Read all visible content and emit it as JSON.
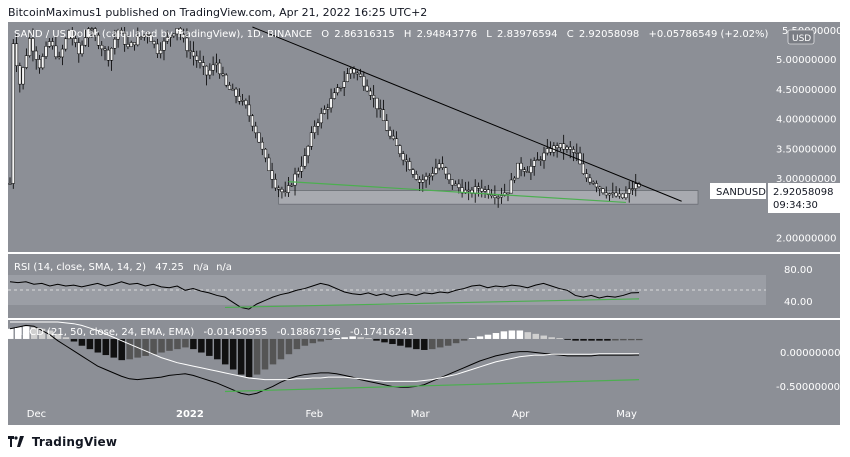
{
  "header": {
    "text": "BitcoinMaximus1 published on TradingView.com, Apr 21, 2022 16:25 UTC+2"
  },
  "legend": {
    "symbol": "SAND / US Dollar (calculated by TradingView), 1D, BINANCE",
    "open_label": "O",
    "open": "2.86316315",
    "high_label": "H",
    "high": "2.94843776",
    "low_label": "L",
    "low": "2.83976594",
    "close_label": "C",
    "close": "2.92058098",
    "change": "+0.05786549 (+2.02%)"
  },
  "currency_badge": "USD",
  "price_tag": {
    "symbol": "SANDUSD",
    "price": "2.92058098",
    "countdown": "09:34:30"
  },
  "price_axis": {
    "top_partial": "5.50000000",
    "labels": [
      "5.00000000",
      "4.50000000",
      "4.00000000",
      "3.50000000",
      "3.00000000",
      "2.50000000",
      "2.00000000"
    ]
  },
  "rsi": {
    "legend": "RSI (14, close, SMA, 14, 2)",
    "value": "47.25",
    "na1": "n/a",
    "na2": "n/a",
    "axis_labels": [
      "80.00",
      "40.00"
    ]
  },
  "macd": {
    "legend": "MACD (21, 50, close, 24, EMA, EMA)",
    "v1": "-0.01450955",
    "v2": "-0.18867196",
    "v3": "-0.17416241",
    "axis_labels": [
      "0.00000000",
      "-0.50000000"
    ]
  },
  "time_axis": {
    "labels": [
      "Dec",
      "2022",
      "Feb",
      "Mar",
      "Apr",
      "May"
    ]
  },
  "footer": {
    "brand": "TradingView"
  },
  "colors": {
    "pane_background": "#8c8f96",
    "candle": "#f4f4f4",
    "wick": "#000000",
    "support_line": "#4caf50",
    "box_fill": "#a8aab0"
  },
  "chart_data": [
    {
      "type": "candlestick",
      "title": "SAND / US Dollar (calculated by TradingView), 1D, BINANCE",
      "x_ticks": [
        "Dec",
        "2022",
        "Feb",
        "Mar",
        "Apr",
        "May"
      ],
      "ylim": [
        1.8,
        5.55
      ],
      "y_ticks": [
        2.0,
        2.5,
        3.0,
        3.5,
        4.0,
        4.5,
        5.0,
        5.5
      ],
      "last": {
        "open": 2.86316315,
        "high": 2.94843776,
        "low": 2.83976594,
        "close": 2.92058098
      },
      "price_path": [
        [
          1,
          5.3
        ],
        [
          3,
          4.6
        ],
        [
          6,
          5.35
        ],
        [
          9,
          4.9
        ],
        [
          12,
          5.3
        ],
        [
          15,
          5.0
        ],
        [
          18,
          5.5
        ],
        [
          21,
          5.1
        ],
        [
          24,
          5.55
        ],
        [
          27,
          5.3
        ],
        [
          30,
          5.05
        ],
        [
          33,
          5.5
        ],
        [
          36,
          5.2
        ],
        [
          39,
          5.35
        ],
        [
          42,
          5.45
        ],
        [
          45,
          5.15
        ],
        [
          48,
          5.35
        ],
        [
          51,
          5.55
        ],
        [
          54,
          5.2
        ],
        [
          57,
          5.0
        ],
        [
          60,
          4.75
        ],
        [
          63,
          4.95
        ],
        [
          66,
          4.55
        ],
        [
          69,
          4.4
        ],
        [
          72,
          4.2
        ],
        [
          75,
          3.8
        ],
        [
          78,
          3.3
        ],
        [
          81,
          2.9
        ],
        [
          84,
          2.72
        ],
        [
          87,
          3.05
        ],
        [
          90,
          3.35
        ],
        [
          93,
          3.9
        ],
        [
          96,
          4.15
        ],
        [
          99,
          4.4
        ],
        [
          102,
          4.65
        ],
        [
          104,
          4.85
        ],
        [
          107,
          4.7
        ],
        [
          110,
          4.45
        ],
        [
          113,
          4.1
        ],
        [
          116,
          3.7
        ],
        [
          119,
          3.45
        ],
        [
          122,
          3.2
        ],
        [
          125,
          2.95
        ],
        [
          128,
          3.05
        ],
        [
          131,
          3.25
        ],
        [
          134,
          2.95
        ],
        [
          137,
          2.85
        ],
        [
          140,
          2.75
        ],
        [
          143,
          2.85
        ],
        [
          146,
          2.78
        ],
        [
          149,
          2.72
        ],
        [
          152,
          2.8
        ],
        [
          155,
          3.2
        ],
        [
          158,
          3.15
        ],
        [
          161,
          3.3
        ],
        [
          164,
          3.45
        ],
        [
          167,
          3.55
        ],
        [
          170,
          3.5
        ],
        [
          173,
          3.4
        ],
        [
          175,
          3.05
        ],
        [
          178,
          2.95
        ],
        [
          181,
          2.8
        ],
        [
          184,
          2.72
        ],
        [
          187,
          2.68
        ],
        [
          190,
          2.85
        ],
        [
          192,
          2.92
        ]
      ],
      "descending_resistance": [
        [
          74,
          5.55
        ],
        [
          205,
          2.62
        ]
      ],
      "support_line": [
        [
          85,
          2.95
        ],
        [
          188,
          2.6
        ]
      ],
      "support_zone": [
        2.57,
        2.8
      ]
    },
    {
      "type": "line",
      "title": "RSI (14, close, SMA, 14, 2)",
      "ylim": [
        20,
        90
      ],
      "y_ticks": [
        40,
        80
      ],
      "last": 47.25,
      "series": [
        {
          "values": [
            60,
            59,
            60,
            57,
            58,
            55,
            57,
            55,
            56,
            54,
            56,
            58,
            55,
            57,
            60,
            57,
            58,
            55,
            57,
            54,
            53,
            55,
            50,
            52,
            49,
            47,
            44,
            42,
            36,
            30,
            28,
            34,
            38,
            42,
            45,
            47,
            50,
            52,
            55,
            58,
            56,
            52,
            48,
            46,
            45,
            47,
            44,
            46,
            43,
            45,
            46,
            44,
            47,
            46,
            48,
            47,
            50,
            52,
            55,
            56,
            53,
            55,
            54,
            56,
            55,
            53,
            56,
            58,
            55,
            52,
            50,
            44,
            42,
            44,
            41,
            43,
            42,
            44,
            47,
            47.25
          ]
        }
      ],
      "support_line": [
        [
          27,
          30
        ],
        [
          79,
          40
        ]
      ]
    },
    {
      "type": "bar",
      "title": "MACD (21, 50, close, 24, EMA, EMA)",
      "ylim": [
        -0.72,
        0.2
      ],
      "y_ticks": [
        0.0,
        -0.5
      ],
      "last": [
        -0.01450955,
        -0.18867196,
        -0.17416241
      ],
      "histogram": [
        0.12,
        0.14,
        0.15,
        0.14,
        0.12,
        0.1,
        0.06,
        0.02,
        -0.03,
        -0.08,
        -0.12,
        -0.16,
        -0.19,
        -0.22,
        -0.25,
        -0.24,
        -0.22,
        -0.2,
        -0.18,
        -0.16,
        -0.14,
        -0.12,
        -0.1,
        -0.12,
        -0.16,
        -0.2,
        -0.24,
        -0.3,
        -0.36,
        -0.42,
        -0.45,
        -0.42,
        -0.36,
        -0.3,
        -0.24,
        -0.18,
        -0.12,
        -0.08,
        -0.05,
        -0.03,
        -0.01,
        0.01,
        0.02,
        0.03,
        0.02,
        0.01,
        -0.02,
        -0.04,
        -0.06,
        -0.08,
        -0.1,
        -0.12,
        -0.13,
        -0.12,
        -0.1,
        -0.08,
        -0.05,
        -0.02,
        0.01,
        0.03,
        0.05,
        0.07,
        0.09,
        0.1,
        0.1,
        0.08,
        0.06,
        0.04,
        0.02,
        0.01,
        -0.01,
        -0.02,
        -0.02,
        -0.02,
        -0.02,
        -0.02,
        -0.018,
        -0.016,
        -0.015,
        -0.0145
      ],
      "macd_line": [
        0.12,
        0.14,
        0.16,
        0.15,
        0.1,
        0.05,
        -0.02,
        -0.08,
        -0.14,
        -0.2,
        -0.26,
        -0.32,
        -0.36,
        -0.4,
        -0.44,
        -0.47,
        -0.48,
        -0.47,
        -0.46,
        -0.45,
        -0.43,
        -0.42,
        -0.41,
        -0.43,
        -0.46,
        -0.49,
        -0.52,
        -0.56,
        -0.6,
        -0.64,
        -0.66,
        -0.64,
        -0.6,
        -0.56,
        -0.51,
        -0.47,
        -0.44,
        -0.42,
        -0.41,
        -0.4,
        -0.4,
        -0.41,
        -0.43,
        -0.45,
        -0.48,
        -0.5,
        -0.52,
        -0.54,
        -0.56,
        -0.57,
        -0.57,
        -0.56,
        -0.54,
        -0.5,
        -0.46,
        -0.42,
        -0.38,
        -0.34,
        -0.3,
        -0.26,
        -0.23,
        -0.2,
        -0.18,
        -0.16,
        -0.15,
        -0.15,
        -0.16,
        -0.17,
        -0.18,
        -0.19,
        -0.2,
        -0.2,
        -0.2,
        -0.2,
        -0.19,
        -0.19,
        -0.19,
        -0.19,
        -0.19,
        -0.18867196
      ],
      "signal_line": [
        0.2,
        0.2,
        0.2,
        0.2,
        0.2,
        0.2,
        0.2,
        0.19,
        0.18,
        0.16,
        0.13,
        0.1,
        0.06,
        0.02,
        -0.02,
        -0.06,
        -0.1,
        -0.14,
        -0.18,
        -0.22,
        -0.25,
        -0.28,
        -0.3,
        -0.32,
        -0.34,
        -0.36,
        -0.38,
        -0.4,
        -0.42,
        -0.44,
        -0.46,
        -0.47,
        -0.48,
        -0.48,
        -0.48,
        -0.48,
        -0.47,
        -0.47,
        -0.46,
        -0.46,
        -0.45,
        -0.45,
        -0.45,
        -0.46,
        -0.47,
        -0.48,
        -0.49,
        -0.5,
        -0.5,
        -0.5,
        -0.5,
        -0.5,
        -0.49,
        -0.48,
        -0.46,
        -0.44,
        -0.42,
        -0.39,
        -0.36,
        -0.33,
        -0.3,
        -0.27,
        -0.25,
        -0.23,
        -0.21,
        -0.2,
        -0.19,
        -0.19,
        -0.18,
        -0.18,
        -0.18,
        -0.18,
        -0.18,
        -0.18,
        -0.175,
        -0.175,
        -0.175,
        -0.175,
        -0.174,
        -0.17416241
      ],
      "support_line": [
        [
          27,
          -0.62
        ],
        [
          79,
          -0.48
        ]
      ]
    }
  ]
}
